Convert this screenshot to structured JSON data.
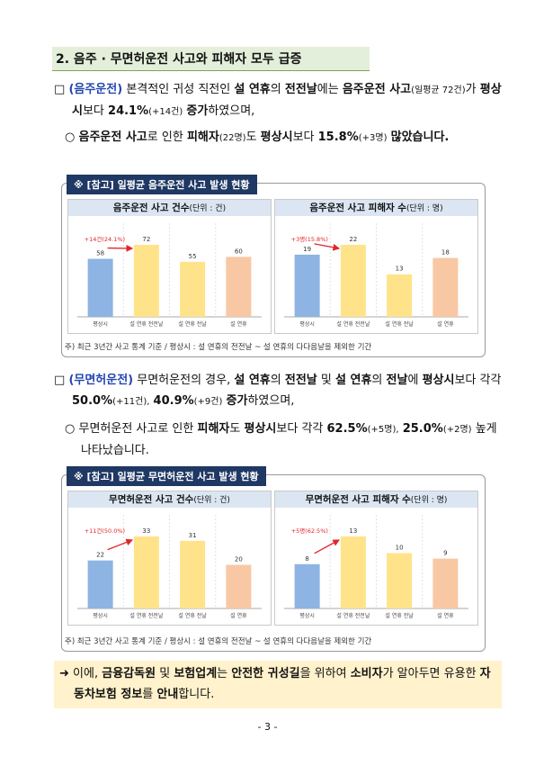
{
  "heading": "2. 음주 · 무면허운전 사고와 피해자 모두 급증",
  "section1": {
    "marker": "□",
    "runs": [
      "(음주운전)",
      "본격적인 귀성 직전인",
      "설 연휴",
      "의",
      "전전날",
      "에는",
      "음주운전 사고",
      "(일평균 72건)",
      "가",
      "평상시",
      "보다",
      "24.1%",
      "(+14건)",
      "증가",
      "하였으며,"
    ],
    "sub": {
      "marker": "○",
      "runs": [
        "음주운전 사고",
        "로 인한",
        "피해자",
        "(22명)",
        "도",
        "평상시",
        "보다",
        "15.8%",
        "(+3명)",
        "많았습니다."
      ]
    }
  },
  "section2": {
    "marker": "□",
    "runs": [
      "(무면허운전)",
      "무면허운전의 경우,",
      "설 연휴",
      "의",
      "전전날",
      "및",
      "설 연휴",
      "의",
      "전날",
      "에",
      "평상시",
      "보다 각각",
      "50.0%",
      "(+11건),",
      "40.9%",
      "(+9건)",
      "증가",
      "하였으며,"
    ],
    "sub": {
      "marker": "○",
      "runs": [
        "무면허운전 사고로 인한",
        "피해자",
        "도",
        "평상시",
        "보다 각각",
        "62.5%",
        "(+5명),",
        "25.0%",
        "(+2명)",
        "높게 나타났습니다."
      ]
    }
  },
  "boxes": [
    {
      "label": "※ [참고] 일평균 음주운전 사고 발생 현황",
      "charts": [
        {
          "type": "bar",
          "title": "음주운전 사고 건수",
          "unit": "(단위 : 건)",
          "categories": [
            "평상시",
            "설 연휴 전전날",
            "설 연휴 전날",
            "설 연휴"
          ],
          "values": [
            58,
            72,
            55,
            60
          ],
          "colors": [
            "#8db4e2",
            "#ffe38a",
            "#ffe38a",
            "#f8c8a4"
          ],
          "annotation": "+14건(24.1%)"
        },
        {
          "type": "bar",
          "title": "음주운전 사고 피해자 수",
          "unit": "(단위 : 명)",
          "categories": [
            "평상시",
            "설 연휴 전전날",
            "설 연휴 전날",
            "설 연휴"
          ],
          "values": [
            19,
            22,
            13,
            18
          ],
          "colors": [
            "#8db4e2",
            "#ffe38a",
            "#ffe38a",
            "#f8c8a4"
          ],
          "annotation": "+3명(15.8%)"
        }
      ],
      "footnote": "주) 최근 3년간 사고 통계 기준 / 평상시 : 설 연휴의 전전날 ~ 설 연휴의 다다음날을 제외한 기간"
    },
    {
      "label": "※ [참고] 일평균 무면허운전 사고 발생 현황",
      "charts": [
        {
          "type": "bar",
          "title": "무면허운전 사고 건수",
          "unit": "(단위 : 건)",
          "categories": [
            "평상시",
            "설 연휴 전전날",
            "설 연휴 전날",
            "설 연휴"
          ],
          "values": [
            22,
            33,
            31,
            20
          ],
          "colors": [
            "#8db4e2",
            "#ffe38a",
            "#ffe38a",
            "#f8c8a4"
          ],
          "annotation": "+11건(50.0%)"
        },
        {
          "type": "bar",
          "title": "무면허운전 사고 피해자 수",
          "unit": "(단위 : 명)",
          "categories": [
            "평상시",
            "설 연휴 전전날",
            "설 연휴 전날",
            "설 연휴"
          ],
          "values": [
            8,
            13,
            10,
            9
          ],
          "colors": [
            "#8db4e2",
            "#ffe38a",
            "#ffe38a",
            "#f8c8a4"
          ],
          "annotation": "+5명(62.5%)"
        }
      ],
      "footnote": "주) 최근 3년간 사고 통계 기준 / 평상시 : 설 연휴의 전전날 ~ 설 연휴의 다다음날을 제외한 기간"
    }
  ],
  "conclusion": [
    "➜",
    "이에,",
    "금융감독원",
    "및",
    "보험업계",
    "는",
    "안전한 귀성길",
    "을 위하여",
    "소비자",
    "가 알아두면 유용한",
    "자동차보험 정보",
    "를",
    "안내",
    "합니다."
  ],
  "page_number": "- 3 -"
}
